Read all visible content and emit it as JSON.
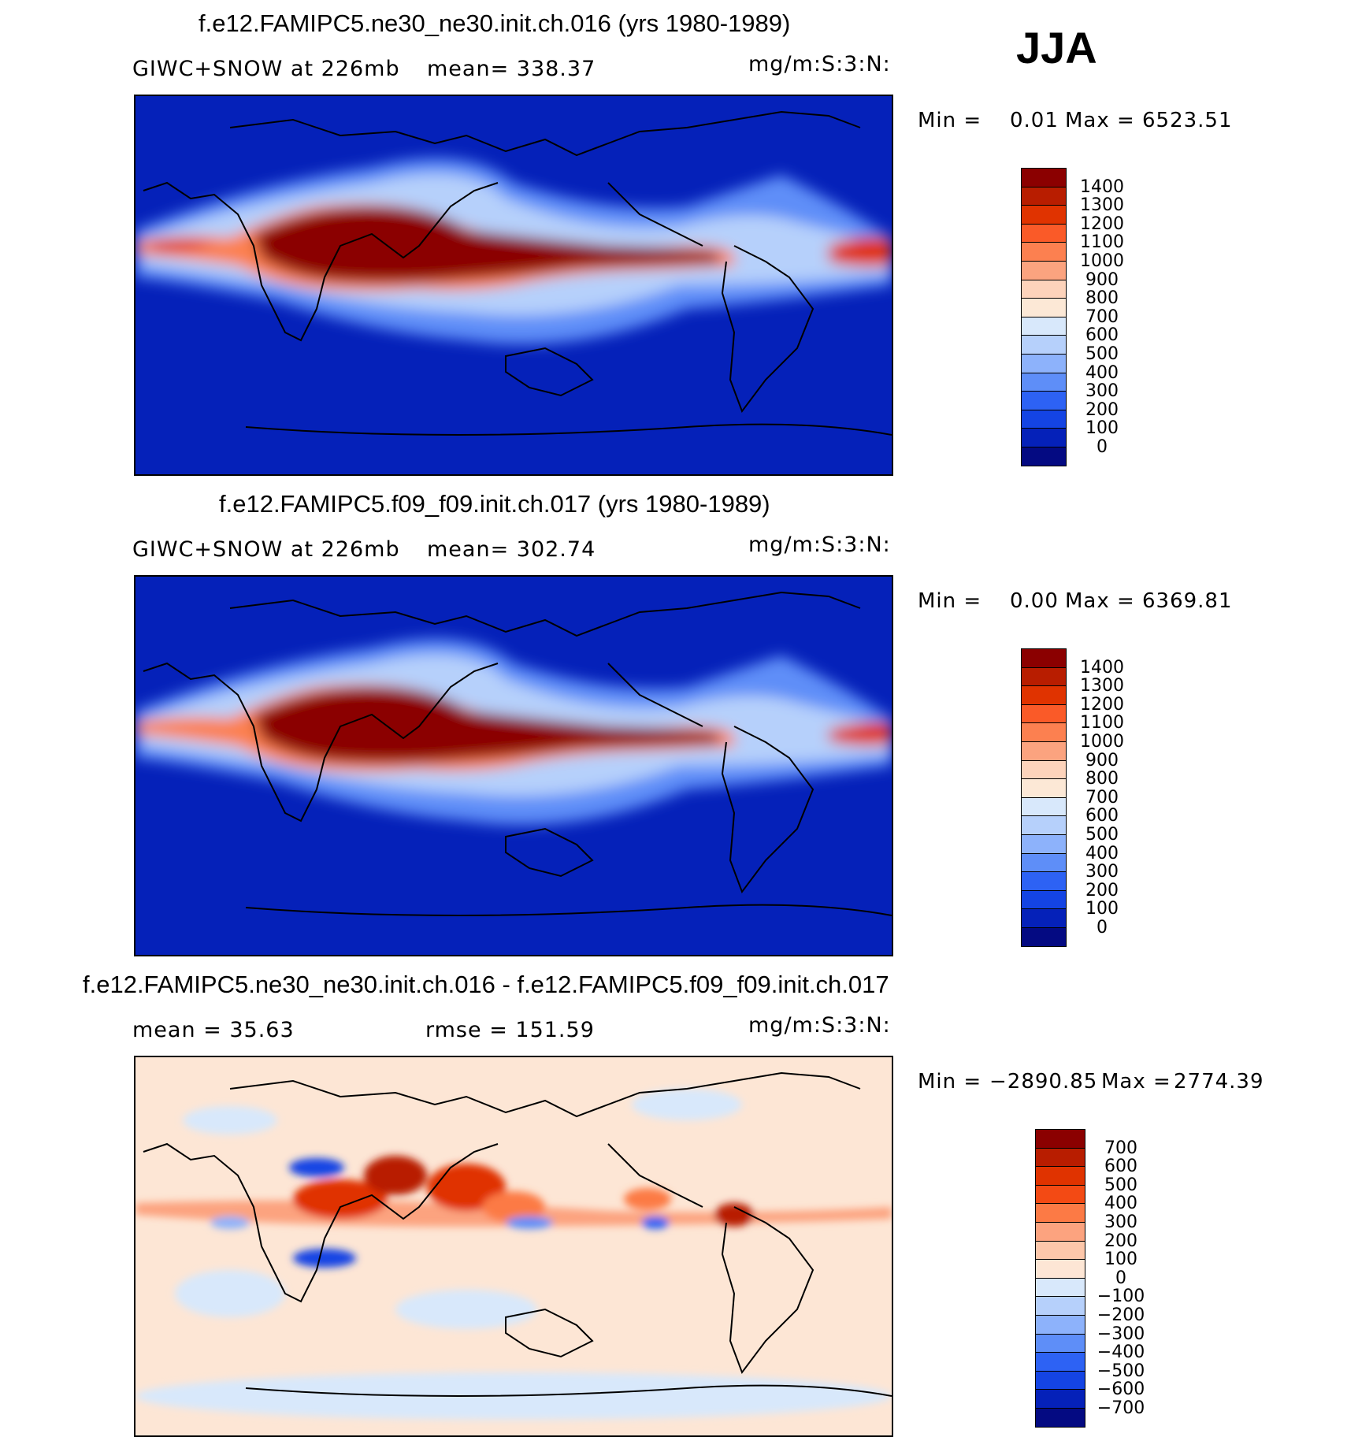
{
  "season": "JJA",
  "panels": [
    {
      "title": "f.e12.FAMIPC5.ne30_ne30.init.ch.016 (yrs 1980-1989)",
      "variable": "GIWC+SNOW at 226mb",
      "stat": "mean= 338.37",
      "units": "mg/m:S:3:N:",
      "min_label": "Min =",
      "min_value": "0.01",
      "max_label": "Max =",
      "max_value": "6523.51",
      "levels": [
        "1400",
        "1300",
        "1200",
        "1100",
        "1000",
        "900",
        "800",
        "700",
        "600",
        "500",
        "400",
        "300",
        "200",
        "100",
        "0"
      ],
      "colors": [
        "#8b0000",
        "#b81d00",
        "#e03300",
        "#fa5a28",
        "#fc8050",
        "#fba37f",
        "#fdd3bb",
        "#fce8d6",
        "#d8e8fb",
        "#b6d0fb",
        "#8db2fb",
        "#5e8ef8",
        "#2d62f4",
        "#1444e4",
        "#0521b9",
        "#040a82"
      ]
    },
    {
      "title": "f.e12.FAMIPC5.f09_f09.init.ch.017 (yrs 1980-1989)",
      "variable": "GIWC+SNOW at 226mb",
      "stat": "mean= 302.74",
      "units": "mg/m:S:3:N:",
      "min_label": "Min =",
      "min_value": "0.00",
      "max_label": "Max =",
      "max_value": "6369.81",
      "levels": [
        "1400",
        "1300",
        "1200",
        "1100",
        "1000",
        "900",
        "800",
        "700",
        "600",
        "500",
        "400",
        "300",
        "200",
        "100",
        "0"
      ],
      "colors": [
        "#8b0000",
        "#b81d00",
        "#e03300",
        "#fa5a28",
        "#fc8050",
        "#fba37f",
        "#fdd3bb",
        "#fce8d6",
        "#d8e8fb",
        "#b6d0fb",
        "#8db2fb",
        "#5e8ef8",
        "#2d62f4",
        "#1444e4",
        "#0521b9",
        "#040a82"
      ]
    },
    {
      "title": "f.e12.FAMIPC5.ne30_ne30.init.ch.016 - f.e12.FAMIPC5.f09_f09.init.ch.017",
      "variable": "mean =   35.63",
      "stat": "rmse =  151.59",
      "units": "mg/m:S:3:N:",
      "min_label": "Min =",
      "min_value": "−2890.85",
      "max_label": "Max =",
      "max_value": "2774.39",
      "levels": [
        "700",
        "600",
        "500",
        "400",
        "300",
        "200",
        "100",
        "0",
        "−100",
        "−200",
        "−300",
        "−400",
        "−500",
        "−600",
        "−700"
      ],
      "colors": [
        "#8b0000",
        "#b81d00",
        "#e03300",
        "#f34a14",
        "#fc7a45",
        "#fca37f",
        "#fdc7aa",
        "#fde6d5",
        "#d8e8fb",
        "#b6d0fb",
        "#8db2fb",
        "#5e8ef8",
        "#2d62f4",
        "#1444e4",
        "#0521b9",
        "#040a82"
      ]
    }
  ]
}
